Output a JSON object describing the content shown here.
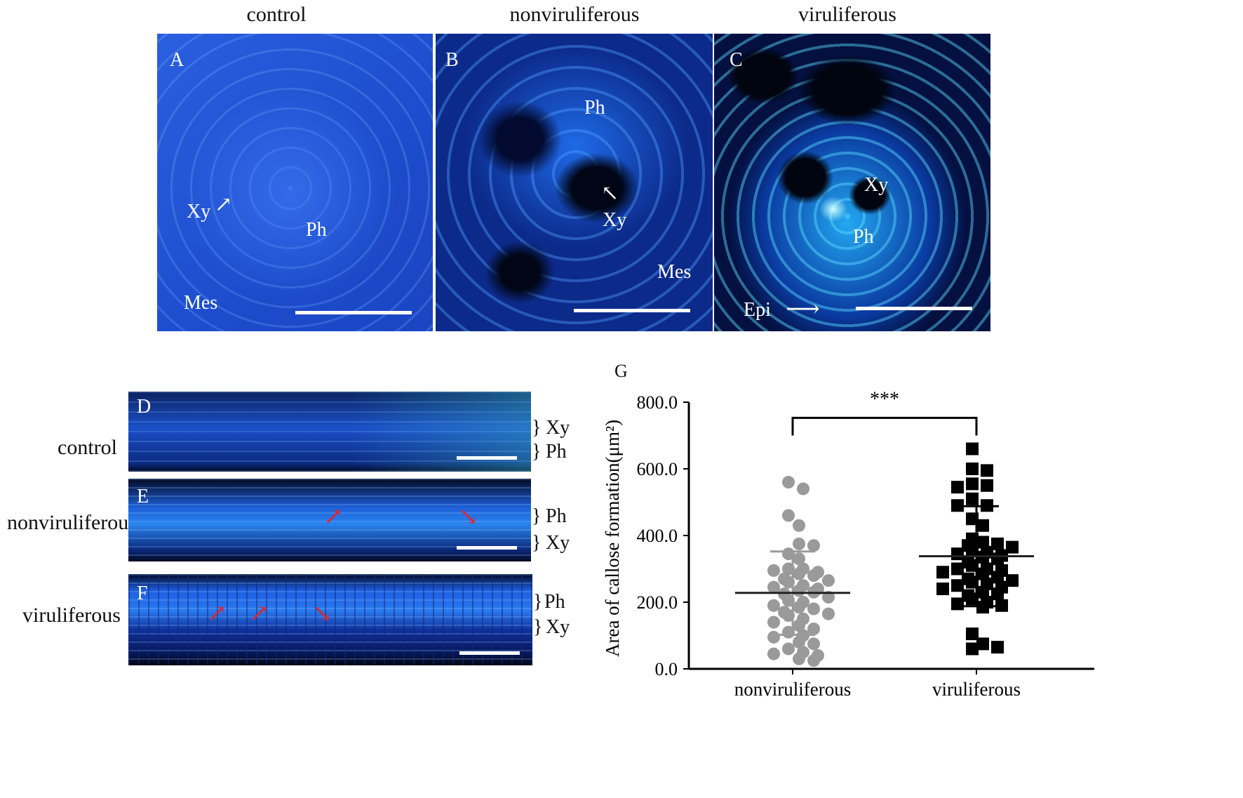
{
  "columns": [
    "control",
    "nonviruliferous",
    "viruliferous"
  ],
  "panels_top": [
    {
      "letter": "A",
      "labels": [
        "Xy",
        "Ph",
        "Mes"
      ]
    },
    {
      "letter": "B",
      "labels": [
        "Ph",
        "Xy",
        "Mes"
      ]
    },
    {
      "letter": "C",
      "labels": [
        "Xy",
        "Ph",
        "Epi"
      ]
    }
  ],
  "rows": [
    {
      "label": "control",
      "letter": "D",
      "brace_labels": [
        "Xy",
        "Ph"
      ]
    },
    {
      "label": "nonviruliferous",
      "letter": "E",
      "brace_labels": [
        "Ph",
        "Xy"
      ]
    },
    {
      "label": "viruliferous",
      "letter": "F",
      "brace_labels": [
        "Ph",
        "Xy"
      ]
    }
  ],
  "panel_g_letter": "G",
  "colors": {
    "fluor_dark": "#0b1a5e",
    "fluor_mid": "#1f5fd6",
    "fluor_bright": "#4fd0ff",
    "arrow_red": "#e0252a",
    "grey_point": "#9a9a9a",
    "black_point": "#000000"
  },
  "chart_data": {
    "type": "scatter",
    "categories": [
      "nonviruliferous",
      "viruliferous"
    ],
    "ylabel": "Area of callose formation(μm²)",
    "yticks": [
      "0.0",
      "200.0",
      "400.0",
      "600.0",
      "800.0"
    ],
    "ylim": [
      0,
      800
    ],
    "significance": "***",
    "series": [
      {
        "name": "nonviruliferous",
        "marker": "circle",
        "mean": 228,
        "sd_upper": 352,
        "sd_lower": 102,
        "values": [
          560,
          540,
          460,
          430,
          375,
          370,
          345,
          330,
          300,
          300,
          295,
          290,
          285,
          280,
          270,
          265,
          260,
          250,
          245,
          240,
          235,
          230,
          225,
          215,
          205,
          200,
          190,
          185,
          180,
          170,
          165,
          160,
          150,
          140,
          130,
          120,
          110,
          100,
          95,
          80,
          75,
          60,
          50,
          45,
          40,
          30,
          25
        ]
      },
      {
        "name": "viruliferous",
        "marker": "square",
        "mean": 338,
        "sd_upper": 488,
        "sd_lower": 188,
        "values": [
          660,
          600,
          595,
          555,
          550,
          545,
          510,
          490,
          490,
          450,
          430,
          390,
          380,
          375,
          370,
          365,
          355,
          350,
          345,
          340,
          335,
          330,
          320,
          310,
          300,
          300,
          295,
          290,
          285,
          275,
          270,
          265,
          260,
          255,
          250,
          245,
          240,
          230,
          225,
          220,
          210,
          200,
          195,
          190,
          185,
          105,
          75,
          65,
          60
        ]
      }
    ]
  }
}
